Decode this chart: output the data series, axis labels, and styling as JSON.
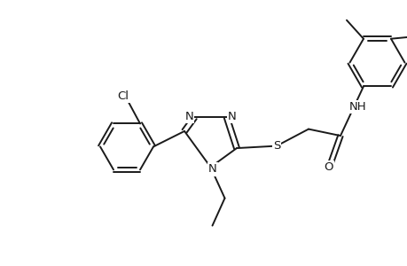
{
  "background_color": "#ffffff",
  "line_color": "#1a1a1a",
  "line_width": 1.4,
  "font_size": 9.5,
  "fig_width": 4.6,
  "fig_height": 3.0,
  "dpi": 100,
  "xlim": [
    0,
    9.2
  ],
  "ylim": [
    0,
    6.0
  ]
}
